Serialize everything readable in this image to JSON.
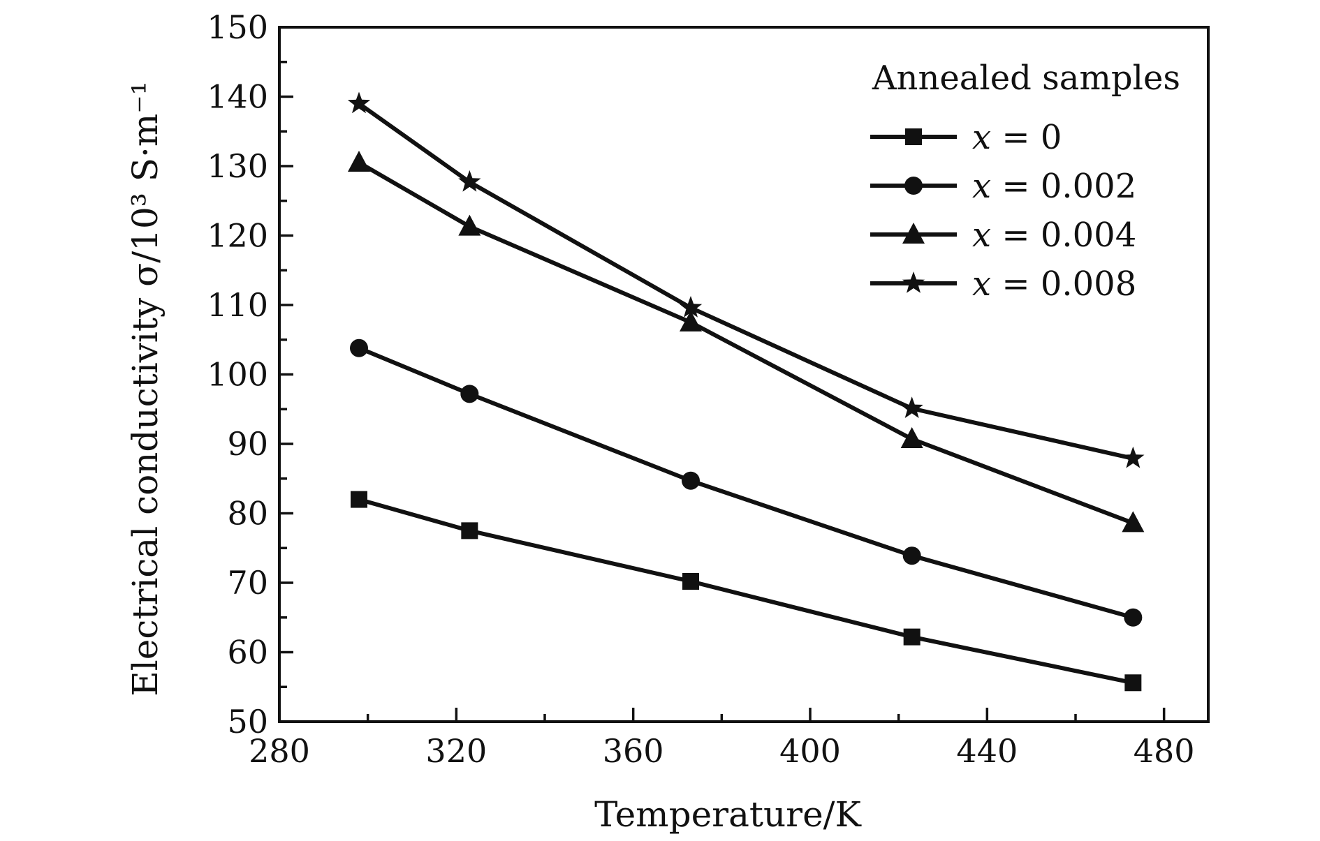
{
  "chart_data": {
    "type": "line",
    "xlabel": "Temperature/K",
    "ylabel": "Electrical conductivity σ/10³ S·m⁻¹",
    "xlim": [
      280,
      490
    ],
    "ylim": [
      50,
      150
    ],
    "x_ticks": [
      280,
      320,
      360,
      400,
      440,
      480
    ],
    "y_ticks": [
      50,
      60,
      70,
      80,
      90,
      100,
      110,
      120,
      130,
      140,
      150
    ],
    "x": [
      298,
      323,
      373,
      423,
      473
    ],
    "legend": {
      "title": "Annealed samples",
      "placement": "top-right"
    },
    "series": [
      {
        "name": "x = 0",
        "var": "x",
        "rest": " = 0",
        "marker": "square",
        "values": [
          82.0,
          77.5,
          70.2,
          62.2,
          55.6
        ]
      },
      {
        "name": "x = 0.002",
        "var": "x",
        "rest": " = 0.002",
        "marker": "circle",
        "values": [
          103.8,
          97.2,
          84.7,
          73.9,
          65.0
        ]
      },
      {
        "name": "x = 0.004",
        "var": "x",
        "rest": " = 0.004",
        "marker": "triangle",
        "values": [
          130.5,
          121.3,
          107.5,
          90.7,
          78.6
        ]
      },
      {
        "name": "x = 0.008",
        "var": "x",
        "rest": " = 0.008",
        "marker": "star",
        "values": [
          139.0,
          127.7,
          109.6,
          95.1,
          87.9
        ]
      }
    ],
    "grid": false
  },
  "colors": {
    "ink": "#111111",
    "background": "#ffffff"
  }
}
